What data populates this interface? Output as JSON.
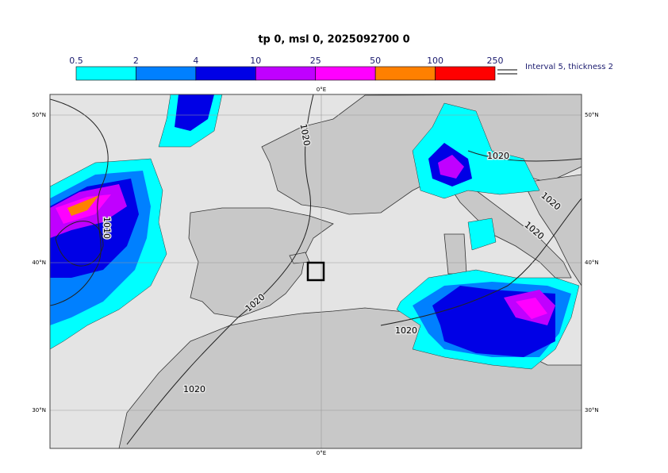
{
  "title": "tp 0, msl 0, 2025092700 0",
  "colorbar": {
    "labels": [
      "0.5",
      "2",
      "4",
      "10",
      "25",
      "50",
      "100",
      "250"
    ],
    "colors": [
      "#00ffff",
      "#0080ff",
      "#0000e6",
      "#c000ff",
      "#ff00ff",
      "#ff8000",
      "#ff0000"
    ]
  },
  "legend": "Interval 5, thickness 2",
  "axes": {
    "top": "0°E",
    "bottom": "0°E",
    "left": [
      "50°N",
      "40°N",
      "30°N"
    ],
    "right": [
      "50°N",
      "40°N",
      "30°N"
    ]
  },
  "contour_labels": [
    "1020",
    "1010",
    "1020",
    "1020",
    "1020",
    "1020",
    "1020",
    "1020"
  ]
}
